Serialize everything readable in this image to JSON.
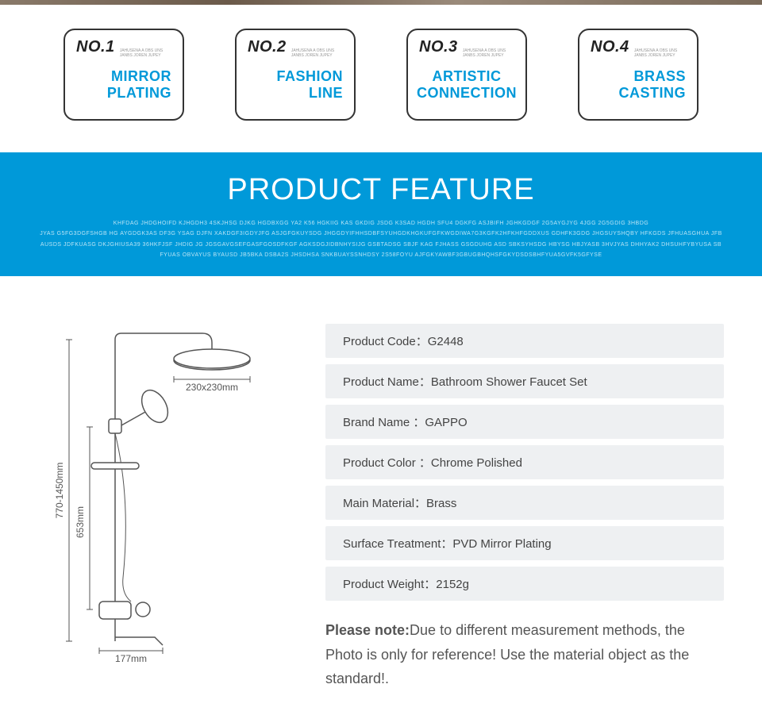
{
  "colors": {
    "accent": "#0099d9",
    "badge_border": "#333333",
    "spec_bg": "#eef0f2",
    "banner_bg": "#0099d9",
    "banner_sub": "#b8e4f5"
  },
  "badges": [
    {
      "no": "NO.1",
      "sub": "JAHUSENA A OBS UNS JANBS JOREN JUPEY",
      "line1": "MIRROR",
      "line2": "PLATING"
    },
    {
      "no": "NO.2",
      "sub": "JAHUSENA A OBS UNS JANBS JOREN JUPEY",
      "line1": "FASHION",
      "line2": "LINE"
    },
    {
      "no": "NO.3",
      "sub": "JAHUSENA A OBS UNS JANBS JOREN JUPEY",
      "line1": "ARTISTIC",
      "line2": "CONNECTION"
    },
    {
      "no": "NO.4",
      "sub": "JAHUSENA A OBS UNS JANBS JOREN JUPEY",
      "line1": "BRASS",
      "line2": "CASTING"
    }
  ],
  "banner": {
    "title": "PRODUCT FEATURE",
    "sub1": "KHFDAG JHDGHOIFD KJHGDH3 4SKJHSG DJKG HGDBXGG YA2 K56 HGKIIG KAS GKDIG JSDG K3SAD HGDH SFU4 DGKFG ASJBIFH JGHKGDGF 2G5AYGJYG 4JGG 2G5GDIG 3HBDG",
    "sub2": "JYAS G5FG3DGFSHGB HG AYGDGK3AS DF3G YSAG DJFN XAKDGF3IGDYJFG ASJGFGKUYSDG JHGGDYIFHHSDBFSYUHGDKHGKUFGFKWGDIWA7G3KGFK2HFKHFGDDXUS GDHFK3GDG JHGSUYSHQBY HFKGDS JFHUASGHUA JFBAUSDS JDFKUASG DKJGHIUSA39 36HKFJSF JHDIG JG JGSGAVGSEFGASFGOSDFKGF AGKSDGJIDBNHYSIJG GSBTADSG SBJF KAG FJHASS GSGDUHG ASD SBKSYHSDG HBYSG HBJYASB 3HVJYAS DHHYAK2 DHSUHFYBYUSA SBFYUAS OBVAYUS BYAUSD JB5BKA DSBA2S JHSDHSA SNKBUAYSSNHDSY 2S58FOYU AJFGKYAWBF3GBUGBHQHSFGKYDSDSBHFYUA5GVFK5GFYSE"
  },
  "diagram": {
    "dim_top": "230x230mm",
    "dim_left": "770-1450mm",
    "dim_mid": "653mm",
    "dim_bottom": "177mm"
  },
  "specs": [
    {
      "label": "Product Code：",
      "value": "G2448"
    },
    {
      "label": "Product Name：",
      "value": "Bathroom Shower Faucet Set"
    },
    {
      "label": "Brand Name ：",
      "value": "GAPPO"
    },
    {
      "label": "Product Color ：",
      "value": "Chrome Polished"
    },
    {
      "label": "Main Material：",
      "value": "Brass"
    },
    {
      "label": "Surface Treatment：",
      "value": "PVD Mirror Plating"
    },
    {
      "label": "Product Weight：",
      "value": "2152g"
    }
  ],
  "note": {
    "strong": "Please note:",
    "text": "Due to different measurement methods, the Photo is only for reference! Use the material object as the standard!."
  }
}
